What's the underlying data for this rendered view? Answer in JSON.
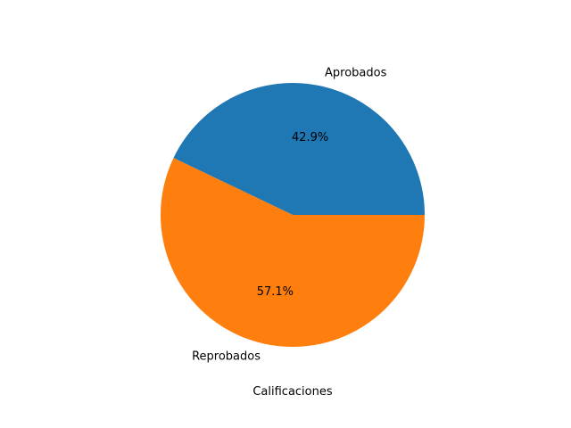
{
  "chart_data": {
    "type": "pie",
    "categories": [
      "Aprobados",
      "Reprobados"
    ],
    "values": [
      42.9,
      57.1
    ],
    "percent_labels": [
      "42.9%",
      "57.1%"
    ],
    "colors": [
      "#1f77b4",
      "#ff7f0e"
    ],
    "xlabel": "Calificaciones",
    "start_angle_deg": 0,
    "direction": "counterclockwise"
  }
}
